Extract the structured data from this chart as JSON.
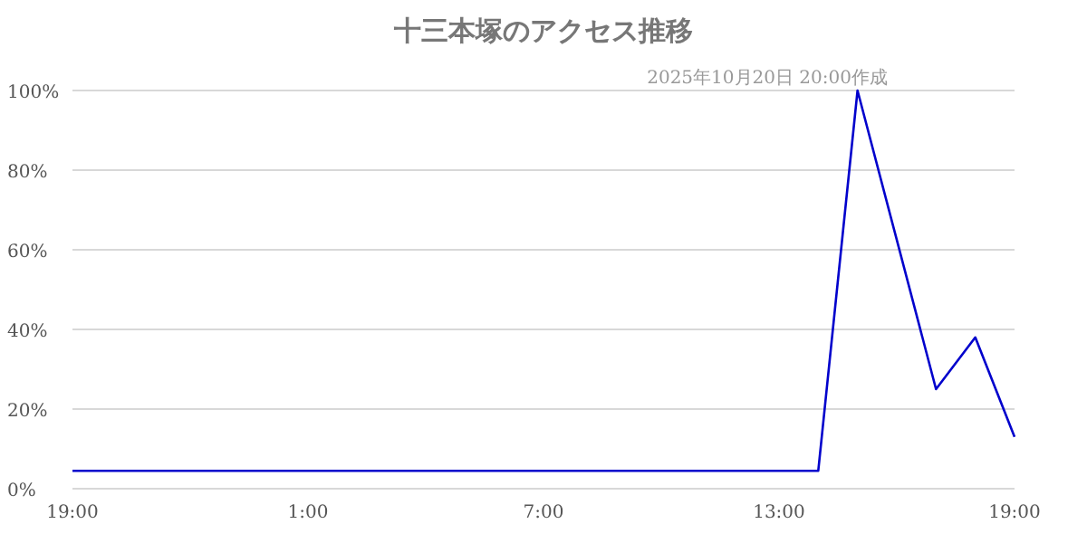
{
  "chart_data": {
    "type": "line",
    "title": "十三本塚のアクセス推移",
    "annotations": [
      "2025年10月20日 20:00作成"
    ],
    "x": [
      "2025-10-19T19:00",
      "2025-10-20T14:00",
      "2025-10-20T15:00",
      "2025-10-20T17:00",
      "2025-10-20T18:00",
      "2025-10-20T19:00"
    ],
    "series": [
      {
        "color": "#0000cc",
        "values": [
          4.5,
          4.5,
          100,
          25,
          38,
          13
        ]
      }
    ],
    "xlim": [
      "2025-10-19T19:00",
      "2025-10-20T19:00"
    ],
    "xticks": [
      {
        "value": "2025-10-19T19:00",
        "label": "19:00"
      },
      {
        "value": "2025-10-20T01:00",
        "label": "1:00"
      },
      {
        "value": "2025-10-20T07:00",
        "label": "7:00"
      },
      {
        "value": "2025-10-20T13:00",
        "label": "13:00"
      },
      {
        "value": "2025-10-20T19:00",
        "label": "19:00"
      }
    ],
    "ylim": [
      0,
      100
    ],
    "yticks": [
      {
        "value": 0,
        "label": "0%"
      },
      {
        "value": 20,
        "label": "20%"
      },
      {
        "value": 40,
        "label": "40%"
      },
      {
        "value": 60,
        "label": "60%"
      },
      {
        "value": 80,
        "label": "80%"
      },
      {
        "value": 100,
        "label": "100%"
      }
    ],
    "grid": "y",
    "marker": "none",
    "line_style": "solid"
  }
}
